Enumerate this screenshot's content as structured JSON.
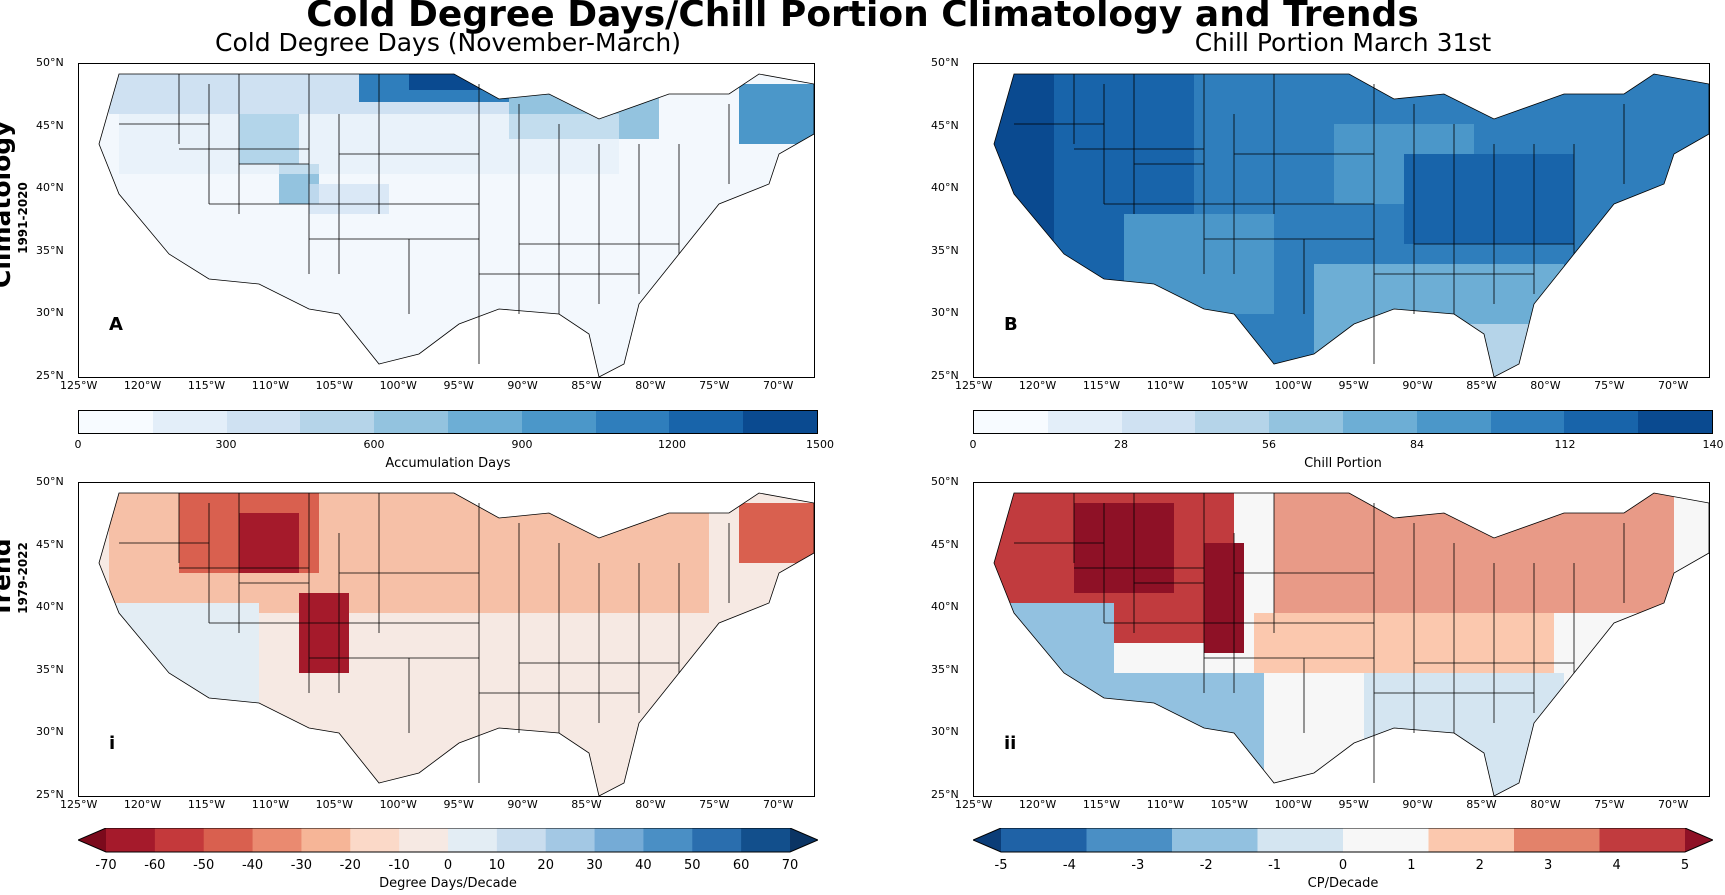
{
  "figure": {
    "title": "Cold Degree Days/Chill Portion Climatology and Trends",
    "rows": [
      {
        "label": "Climatology",
        "period": "1991-2020"
      },
      {
        "label": "Trend",
        "period": "1979-2022"
      }
    ]
  },
  "axes": {
    "lat_ticks": [
      "50°N",
      "45°N",
      "40°N",
      "35°N",
      "30°N",
      "25°N"
    ],
    "lon_ticks": [
      "125°W",
      "120°W",
      "115°W",
      "110°W",
      "105°W",
      "100°W",
      "95°W",
      "90°W",
      "85°W",
      "80°W",
      "75°W",
      "70°W"
    ]
  },
  "panels": [
    {
      "id": "A",
      "title": "Cold Degree Days (November-March)",
      "letter": "A"
    },
    {
      "id": "B",
      "title": "Chill Portion March 31st",
      "letter": "B"
    },
    {
      "id": "i",
      "title": "",
      "letter": "i"
    },
    {
      "id": "ii",
      "title": "",
      "letter": "ii"
    }
  ],
  "colorbars": {
    "cdd_clim": {
      "label": "Accumulation Days",
      "ticks": [
        "0",
        "300",
        "600",
        "900",
        "1200",
        "1500"
      ],
      "colors": [
        "#f7fbff",
        "#e3eef9",
        "#cfe1f2",
        "#b5d4e9",
        "#93c3df",
        "#6daed5",
        "#4b97c9",
        "#2f7ebc",
        "#1864aa",
        "#0a4a90"
      ]
    },
    "cp_clim": {
      "label": "Chill Portion",
      "ticks": [
        "0",
        "28",
        "56",
        "84",
        "112",
        "140"
      ],
      "colors": [
        "#f7fbff",
        "#e3eef9",
        "#cfe1f2",
        "#b5d4e9",
        "#93c3df",
        "#6daed5",
        "#4b97c9",
        "#2f7ebc",
        "#1864aa",
        "#0a4a90"
      ]
    },
    "cdd_trend": {
      "label": "Degree Days/Decade",
      "ticks": [
        "-70",
        "-60",
        "-50",
        "-40",
        "-30",
        "-20",
        "-10",
        "0",
        "10",
        "20",
        "30",
        "40",
        "50",
        "60",
        "70"
      ],
      "colors": [
        "#7b0a1c",
        "#a51a2b",
        "#c4393b",
        "#d9604f",
        "#ea8a70",
        "#f6b597",
        "#fbd9c8",
        "#f6e9e3",
        "#e3edf4",
        "#c9ddee",
        "#a3c8e4",
        "#75abd6",
        "#4a8fc5",
        "#2a6eae",
        "#124f8c",
        "#0a3464"
      ]
    },
    "cp_trend": {
      "label": "CP/Decade",
      "ticks": [
        "-5",
        "-4",
        "-3",
        "-2",
        "-1",
        "0",
        "1",
        "2",
        "3",
        "4",
        "5"
      ],
      "colors": [
        "#0b3d78",
        "#1f62a6",
        "#4a8fc5",
        "#92c1e0",
        "#d4e5f1",
        "#f7f7f7",
        "#fbc8ae",
        "#e3826a",
        "#c13b3e",
        "#8e1126"
      ]
    }
  }
}
